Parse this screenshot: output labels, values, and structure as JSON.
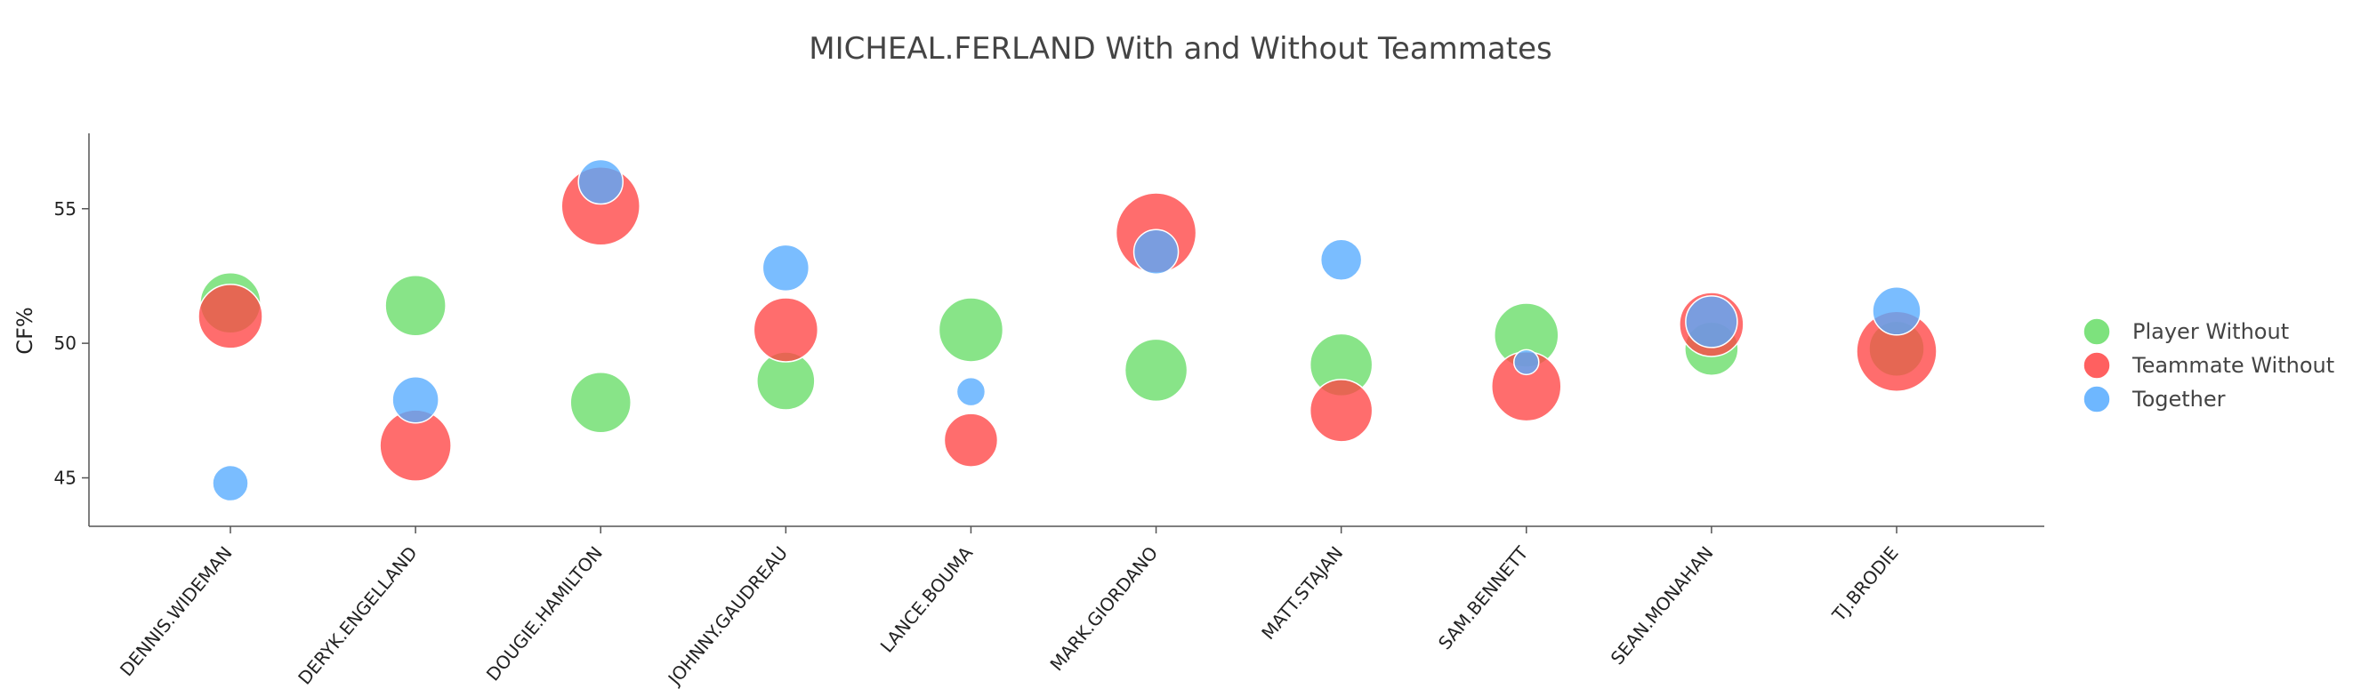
{
  "chart_data": {
    "type": "scatter",
    "title": "MICHEAL.FERLAND With and Without Teammates",
    "xlabel": "",
    "ylabel": "CF%",
    "categories": [
      "DENNIS.WIDEMAN",
      "DERYK.ENGELLAND",
      "DOUGIE.HAMILTON",
      "JOHNNY.GAUDREAU",
      "LANCE.BOUMA",
      "MARK.GIORDANO",
      "MATT.STAJAN",
      "SAM.BENNETT",
      "SEAN.MONAHAN",
      "TJ.BRODIE"
    ],
    "ylim": [
      43.2,
      57.8
    ],
    "yticks": [
      45,
      50,
      55
    ],
    "grid": false,
    "legend_position": "right",
    "series": [
      {
        "name": "Player Without",
        "color": "#66dd66",
        "values": [
          51.5,
          51.4,
          47.8,
          48.6,
          50.5,
          49.0,
          49.2,
          50.3,
          49.8,
          49.8
        ],
        "sizes": [
          68,
          68,
          68,
          65,
          72,
          70,
          70,
          72,
          60,
          62
        ]
      },
      {
        "name": "Teammate Without",
        "color": "#ff4444",
        "values": [
          51.0,
          46.2,
          55.1,
          50.5,
          46.4,
          54.1,
          47.5,
          48.4,
          50.7,
          49.7
        ],
        "sizes": [
          72,
          80,
          88,
          72,
          60,
          90,
          70,
          78,
          72,
          90
        ]
      },
      {
        "name": "Together",
        "color": "#55aaff",
        "values": [
          44.8,
          47.9,
          56.0,
          52.8,
          48.2,
          53.4,
          53.1,
          49.3,
          50.8,
          51.2
        ],
        "sizes": [
          40,
          52,
          50,
          52,
          32,
          50,
          46,
          28,
          58,
          54
        ]
      }
    ]
  }
}
